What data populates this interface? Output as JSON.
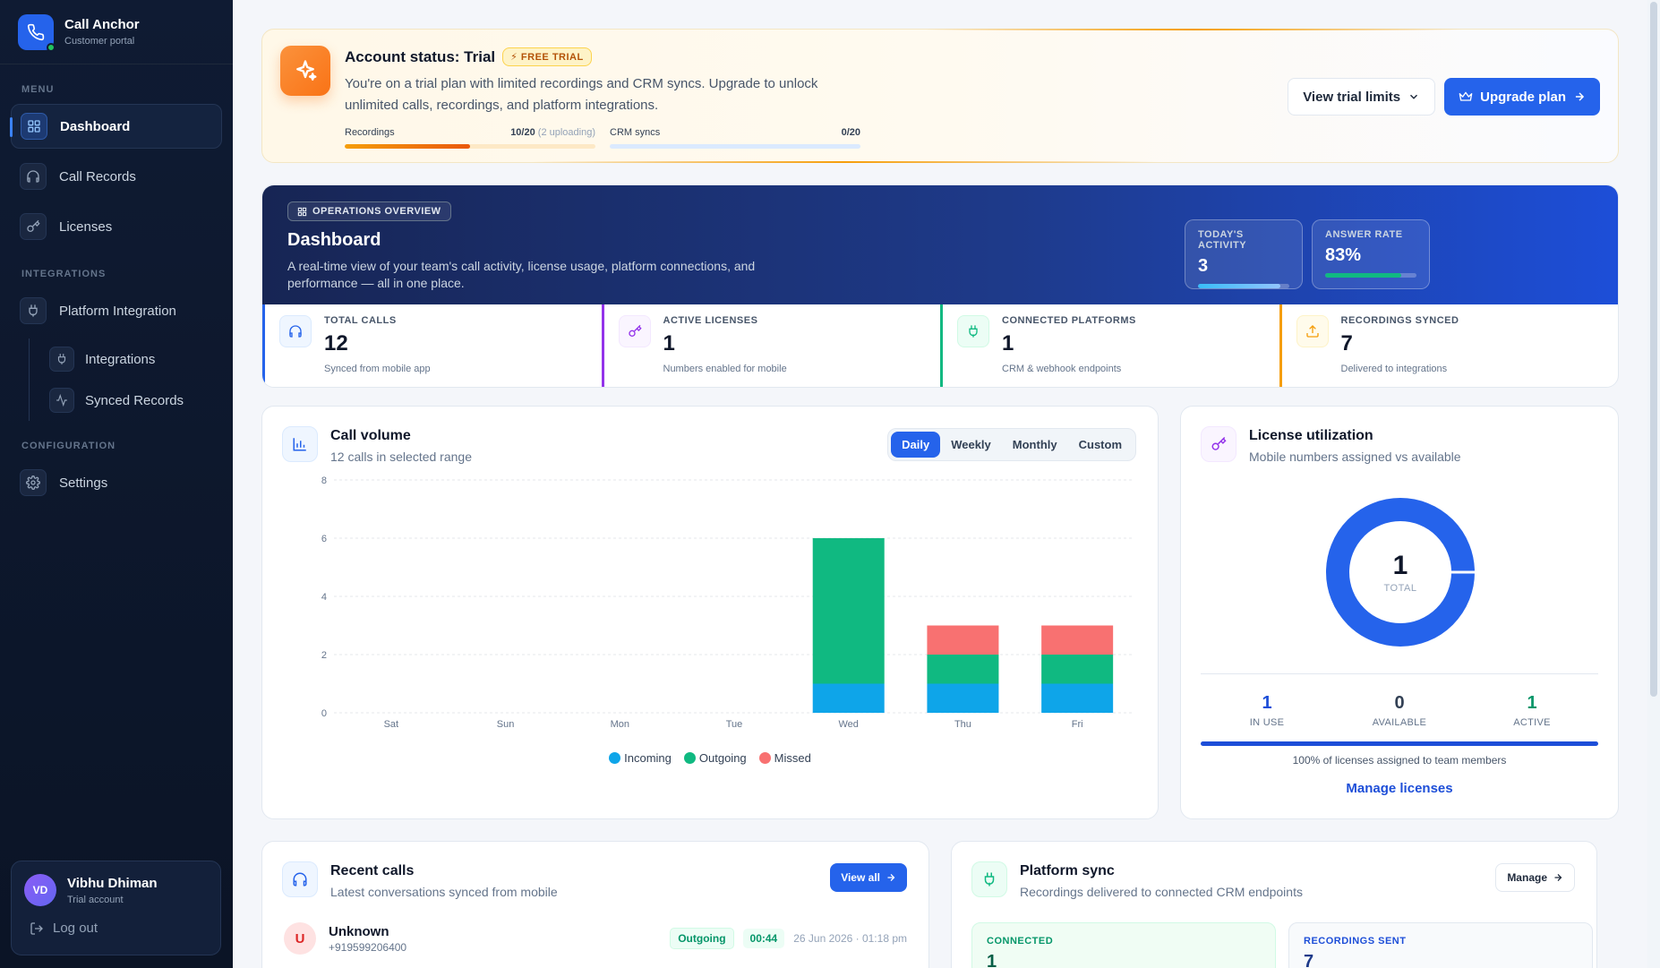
{
  "brand": {
    "name": "Call Anchor",
    "sub": "Customer portal"
  },
  "sidebar": {
    "menu_label": "MENU",
    "integrations_label": "INTEGRATIONS",
    "configuration_label": "CONFIGURATION",
    "items": {
      "dashboard": "Dashboard",
      "call_records": "Call Records",
      "licenses": "Licenses",
      "platform_integration": "Platform Integration",
      "integrations": "Integrations",
      "synced_records": "Synced Records",
      "settings": "Settings"
    }
  },
  "user": {
    "initials": "VD",
    "name": "Vibhu Dhiman",
    "role": "Trial account",
    "logout": "Log out"
  },
  "trial": {
    "title": "Account status: Trial",
    "badge": "FREE TRIAL",
    "description": "You're on a trial plan with limited recordings and CRM syncs. Upgrade to unlock unlimited calls, recordings, and platform integrations.",
    "recordings_label": "Recordings",
    "recordings_value": "10/20",
    "recordings_uploading": "(2 uploading)",
    "recordings_fraction": 0.5,
    "crm_label": "CRM syncs",
    "crm_value": "0/20",
    "crm_fraction": 0,
    "view_limits": "View trial limits",
    "upgrade": "Upgrade plan"
  },
  "overview": {
    "tag": "OPERATIONS OVERVIEW",
    "title": "Dashboard",
    "description": "A real-time view of your team's call activity, license usage, platform connections, and performance — all in one place.",
    "today_label": "TODAY'S ACTIVITY",
    "today_value": "3",
    "today_fraction": 0.9,
    "answer_label": "ANSWER RATE",
    "answer_value": "83%",
    "answer_fraction": 0.83
  },
  "stats": [
    {
      "label": "TOTAL CALLS",
      "value": "12",
      "sub": "Synced from mobile app",
      "color": "#2563eb"
    },
    {
      "label": "ACTIVE LICENSES",
      "value": "1",
      "sub": "Numbers enabled for mobile",
      "color": "#9333ea"
    },
    {
      "label": "CONNECTED PLATFORMS",
      "value": "1",
      "sub": "CRM & webhook endpoints",
      "color": "#10b981"
    },
    {
      "label": "RECORDINGS SYNCED",
      "value": "7",
      "sub": "Delivered to integrations",
      "color": "#f59e0b"
    }
  ],
  "call_volume": {
    "title": "Call volume",
    "sub": "12 calls in selected range",
    "tabs": [
      "Daily",
      "Weekly",
      "Monthly",
      "Custom"
    ],
    "active_tab": "Daily"
  },
  "chart_data": {
    "type": "bar",
    "stacked": true,
    "categories": [
      "Sat",
      "Sun",
      "Mon",
      "Tue",
      "Wed",
      "Thu",
      "Fri"
    ],
    "series": [
      {
        "name": "Incoming",
        "color": "#0ea5e9",
        "values": [
          0,
          0,
          0,
          0,
          1,
          1,
          1
        ]
      },
      {
        "name": "Outgoing",
        "color": "#10b981",
        "values": [
          0,
          0,
          0,
          0,
          5,
          1,
          1
        ]
      },
      {
        "name": "Missed",
        "color": "#f87171",
        "values": [
          0,
          0,
          0,
          0,
          0,
          1,
          1
        ]
      }
    ],
    "yticks": [
      0,
      2,
      4,
      6,
      8
    ],
    "ylim": [
      0,
      8
    ],
    "grid": true,
    "legend": "bottom"
  },
  "license": {
    "title": "License utilization",
    "sub": "Mobile numbers assigned vs available",
    "total": "1",
    "total_label": "TOTAL",
    "in_use": "1",
    "in_use_label": "IN USE",
    "available": "0",
    "available_label": "AVAILABLE",
    "active": "1",
    "active_label": "ACTIVE",
    "assigned_fraction": 1,
    "note": "100% of licenses assigned to team members",
    "link": "Manage licenses"
  },
  "recent_calls": {
    "title": "Recent calls",
    "sub": "Latest conversations synced from mobile",
    "view_all": "View all",
    "row": {
      "initial": "U",
      "name": "Unknown",
      "number": "+919599206400",
      "direction": "Outgoing",
      "duration": "00:44",
      "time": "26 Jun 2026 · 01:18 pm"
    }
  },
  "platform_sync": {
    "title": "Platform sync",
    "sub": "Recordings delivered to connected CRM endpoints",
    "manage": "Manage",
    "connected_label": "CONNECTED",
    "connected_value": "1",
    "sent_label": "RECORDINGS SENT",
    "sent_value": "7"
  }
}
